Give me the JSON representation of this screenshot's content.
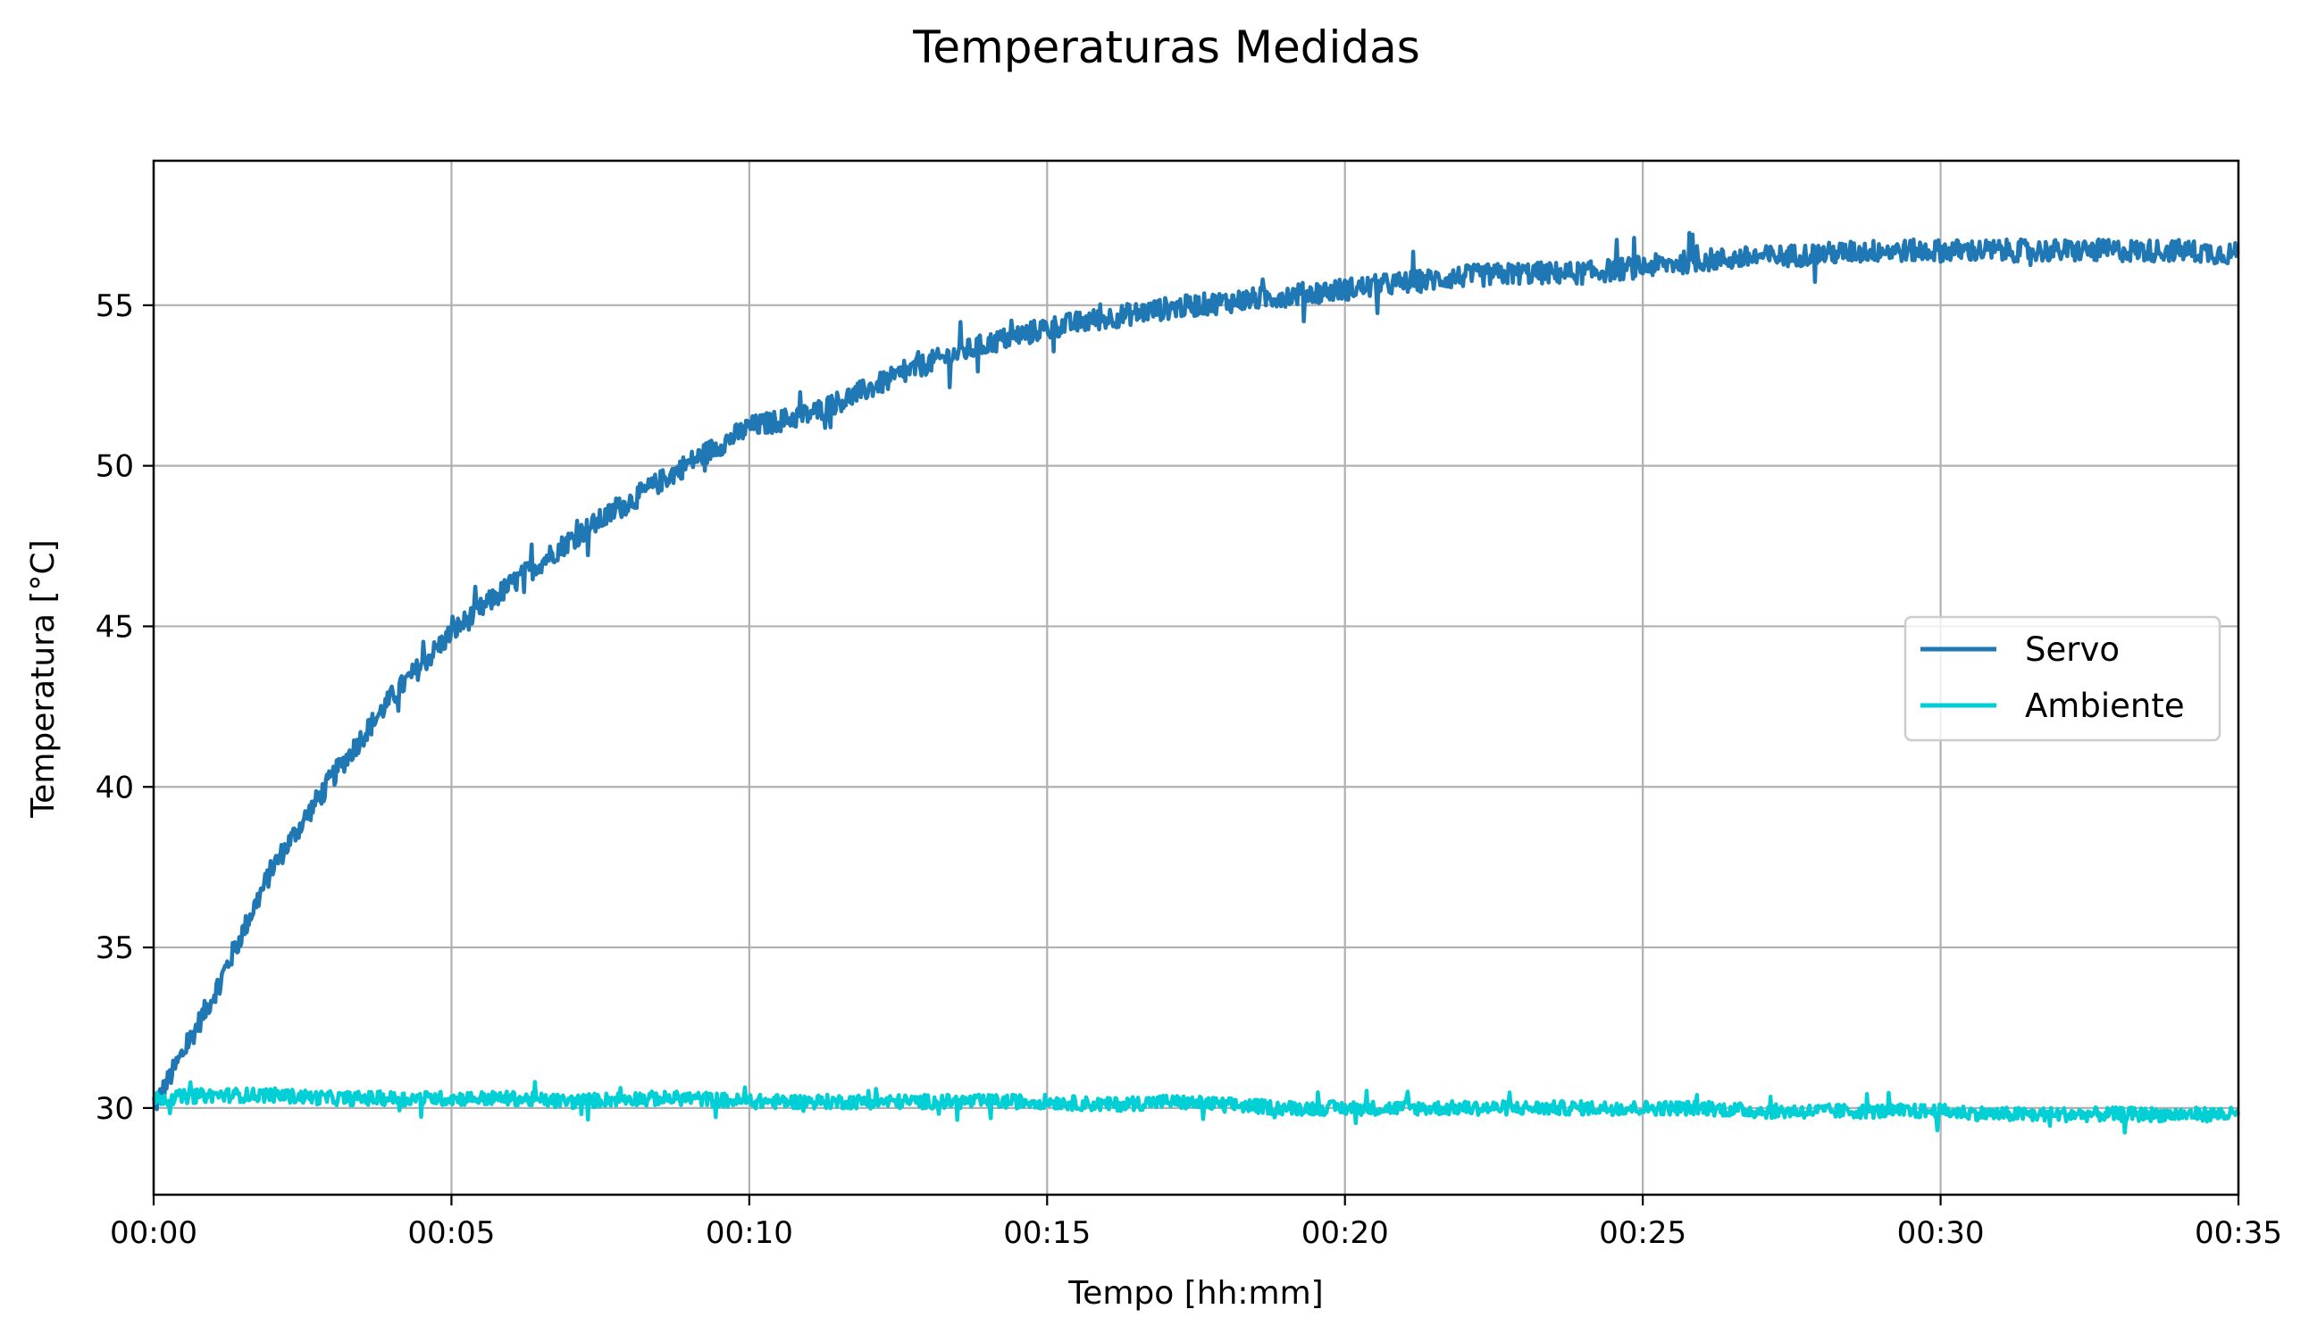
{
  "chart_data": {
    "type": "line",
    "title": "Temperaturas Medidas",
    "xlabel": "Tempo [hh:mm]",
    "ylabel": "Temperatura [°C]",
    "x_unit": "hh:mm",
    "x_ticks": [
      "00:00",
      "00:05",
      "00:10",
      "00:15",
      "00:20",
      "00:25",
      "00:30",
      "00:35"
    ],
    "y_ticks": [
      30,
      35,
      40,
      45,
      50,
      55
    ],
    "xlim": [
      "00:00",
      "00:35"
    ],
    "ylim": [
      27.3,
      59.5
    ],
    "grid": true,
    "legend_position": "center-right",
    "x": [
      "00:00",
      "00:01",
      "00:02",
      "00:03",
      "00:04",
      "00:05",
      "00:06",
      "00:07",
      "00:08",
      "00:09",
      "00:10",
      "00:11",
      "00:12",
      "00:13",
      "00:14",
      "00:15",
      "00:16",
      "00:17",
      "00:18",
      "00:19",
      "00:20",
      "00:21",
      "00:22",
      "00:23",
      "00:24",
      "00:25",
      "00:26",
      "00:27",
      "00:28",
      "00:29",
      "00:30",
      "00:31",
      "00:32",
      "00:33",
      "00:34",
      "00:35"
    ],
    "series": [
      {
        "name": "Servo",
        "color": "#1f77b4",
        "values": [
          30.0,
          33.5,
          37.5,
          40.3,
          42.8,
          44.8,
          46.3,
          47.7,
          48.9,
          50.1,
          51.2,
          51.6,
          52.4,
          53.2,
          53.8,
          54.3,
          54.6,
          54.9,
          55.1,
          55.3,
          55.5,
          55.7,
          55.9,
          56.0,
          56.0,
          56.2,
          56.4,
          56.5,
          56.6,
          56.7,
          56.7,
          56.7,
          56.7,
          56.7,
          56.7,
          56.6
        ]
      },
      {
        "name": "Ambiente",
        "color": "#00cfd5",
        "values": [
          30.3,
          30.4,
          30.4,
          30.3,
          30.3,
          30.3,
          30.3,
          30.2,
          30.3,
          30.3,
          30.2,
          30.2,
          30.2,
          30.2,
          30.2,
          30.2,
          30.1,
          30.2,
          30.1,
          30.0,
          30.0,
          30.0,
          30.0,
          30.0,
          30.0,
          30.0,
          30.0,
          29.9,
          29.9,
          29.9,
          29.9,
          29.8,
          29.8,
          29.8,
          29.8,
          29.8
        ]
      }
    ]
  }
}
